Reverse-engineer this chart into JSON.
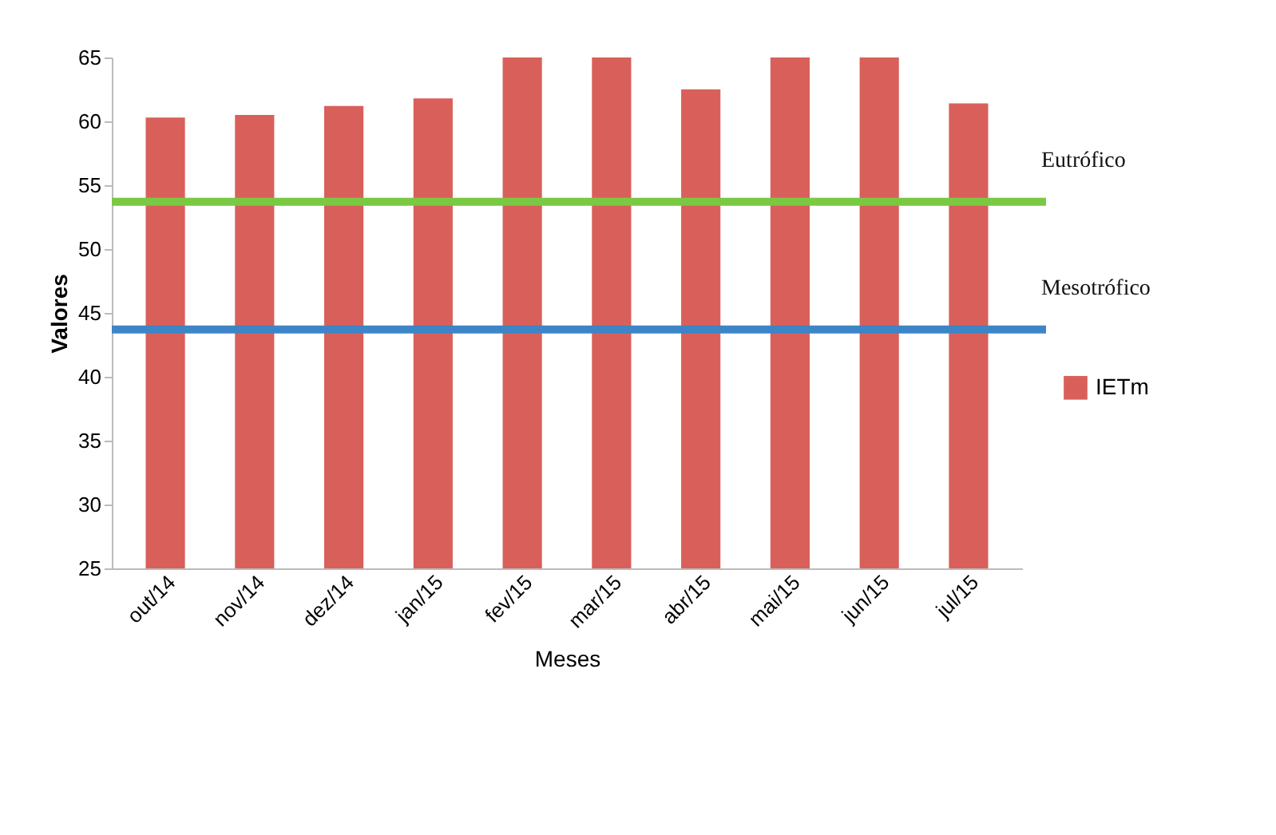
{
  "chart_data": {
    "type": "bar",
    "xlabel": "Meses",
    "ylabel": "Valores",
    "categories": [
      "out/14",
      "nov/14",
      "dez/14",
      "jan/15",
      "fev/15",
      "mar/15",
      "abr/15",
      "mai/15",
      "jun/15",
      "jul/15"
    ],
    "series": [
      {
        "name": "IETm",
        "color": "#d9605a",
        "values": [
          60.3,
          60.5,
          61.2,
          61.8,
          65,
          65,
          62.5,
          65,
          65,
          61.4
        ]
      }
    ],
    "ylim": [
      25,
      65
    ],
    "yticks": [
      25,
      30,
      35,
      40,
      45,
      50,
      55,
      60,
      65
    ],
    "grid": false,
    "legend": "right",
    "ref_lines": [
      {
        "axis": "y",
        "value": 53.7,
        "label": "Eutrófico",
        "color": "#7ac943"
      },
      {
        "axis": "y",
        "value": 43.7,
        "label": "Mesotrófico",
        "color": "#3d85c6"
      }
    ]
  }
}
